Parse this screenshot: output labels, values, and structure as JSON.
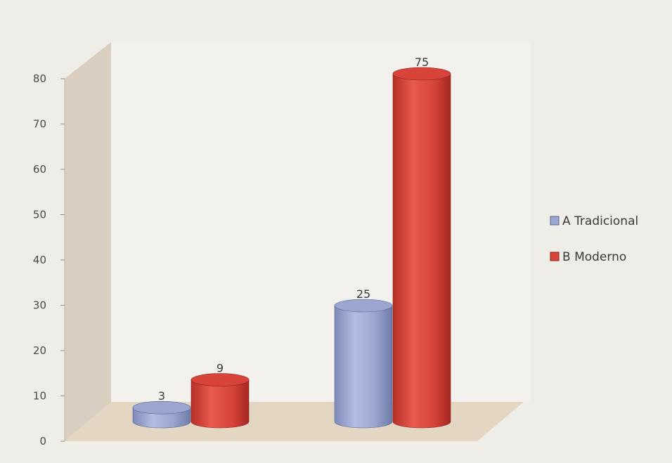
{
  "chart_data": {
    "type": "bar",
    "style": "3d-cylinder",
    "categories": [
      "",
      ""
    ],
    "series": [
      {
        "name": "A Tradicional",
        "values": [
          3,
          25
        ],
        "color": "#9aa6cf"
      },
      {
        "name": "B Moderno",
        "values": [
          9,
          75
        ],
        "color": "#d8443a"
      }
    ],
    "data_labels": [
      [
        "3",
        "25"
      ],
      [
        "9",
        "75"
      ]
    ],
    "y_ticks": [
      "0",
      "10",
      "20",
      "30",
      "40",
      "50",
      "60",
      "70",
      "80"
    ],
    "ylim": [
      0,
      80
    ],
    "title": "",
    "xlabel": "",
    "ylabel": "",
    "grid": false,
    "legend_position": "right"
  },
  "colors": {
    "background": "#efede8",
    "back_wall": "#f3f1ed",
    "side_wall": "#d9cfc0",
    "floor": "#e3d6c2"
  }
}
